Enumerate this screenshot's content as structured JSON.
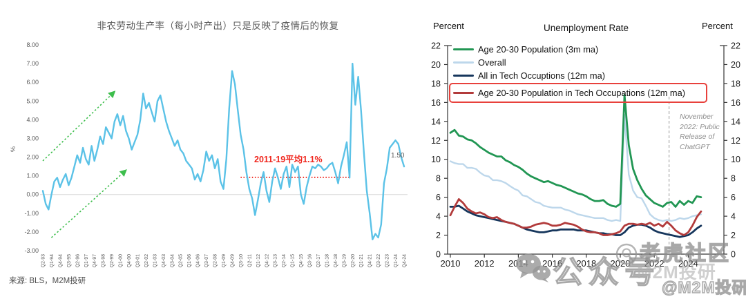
{
  "source_note": "来源:  BLS，M2M投研",
  "watermarks": {
    "wechat_label": "公众号",
    "community_label": "老虎社区",
    "brand_label": "M2M投研",
    "handle_label": "@M2M投研"
  },
  "left_chart": {
    "title": "非农劳动生产率（每小时产出）只是反映了疫情后的恢复",
    "ylabel": "%",
    "avg_annotation": "2011-19平均1.1%",
    "last_value_label": "1.50"
  },
  "right_chart": {
    "title": "Unemployment Rate",
    "axis_label_left": "Percent",
    "axis_label_right": "Percent",
    "event_annotation": "November 2022: Public Release of ChatGPT"
  },
  "colors": {
    "productivity_line": "#5BC2E7",
    "trend_arrow": "#3DBE4C",
    "avg_line_red": "#F0261D",
    "legend_highlight_box": "#E8413C",
    "zero_gridline": "#D8D8D8",
    "event_dashed_line": "#A9A9A9",
    "axis_black": "#333333",
    "left_text_gray": "#595959"
  },
  "chart_data": [
    {
      "type": "line",
      "title": "非农劳动生产率（每小时产出）只是反映了疫情后的恢复",
      "ylabel": "%",
      "ylim": [
        -3,
        8
      ],
      "yticks": [
        8,
        7,
        6,
        5,
        4,
        3,
        2,
        1,
        0,
        -1,
        -2,
        -3
      ],
      "ytick_format": "two-decimals",
      "grid": "zero-line-only",
      "x_unit": "quarter",
      "x_first": "1993Q2",
      "x_last": "2024Q4",
      "x_tick_every": 3,
      "x_tick_labels": [
        "Q2-93",
        "Q1-94",
        "Q4-94",
        "Q3-95",
        "Q2-96",
        "Q1-97",
        "Q4-97",
        "Q3-98",
        "Q2-99",
        "Q1-00",
        "Q4-00",
        "Q3-01",
        "Q2-02",
        "Q1-03",
        "Q4-03",
        "Q3-04",
        "Q2-05",
        "Q1-06",
        "Q4-06",
        "Q3-07",
        "Q2-08",
        "Q1-09",
        "Q4-09",
        "Q3-10",
        "Q2-11",
        "Q1-12",
        "Q4-12",
        "Q3-13",
        "Q2-14",
        "Q1-15",
        "Q4-15",
        "Q3-16",
        "Q2-17",
        "Q1-18",
        "Q4-18",
        "Q3-19",
        "Q2-20",
        "Q1-21",
        "Q4-21",
        "Q3-22",
        "Q2-23",
        "Q1-24",
        "Q4-24"
      ],
      "series": [
        {
          "name": "非农劳动生产率（每小时产出）",
          "color": "#5BC2E7",
          "values": [
            0.2,
            -0.5,
            -0.8,
            0.0,
            0.7,
            0.9,
            0.4,
            0.8,
            1.1,
            0.5,
            0.9,
            1.5,
            2.1,
            1.7,
            2.5,
            1.9,
            1.6,
            2.6,
            1.8,
            2.4,
            3.1,
            2.7,
            3.6,
            3.3,
            3.0,
            3.9,
            4.3,
            3.7,
            4.2,
            3.4,
            3.0,
            2.4,
            2.8,
            3.2,
            4.0,
            5.4,
            4.6,
            4.9,
            4.4,
            3.9,
            5.0,
            5.3,
            4.6,
            3.9,
            3.4,
            3.0,
            2.6,
            2.9,
            2.4,
            2.2,
            1.8,
            1.6,
            1.4,
            0.8,
            1.1,
            0.7,
            1.3,
            2.3,
            1.8,
            2.1,
            1.4,
            1.9,
            0.7,
            0.3,
            1.9,
            4.6,
            6.6,
            5.9,
            4.5,
            3.2,
            2.4,
            1.2,
            0.3,
            -0.2,
            -1.1,
            -0.3,
            0.6,
            1.2,
            0.2,
            -0.4,
            0.7,
            1.4,
            0.9,
            0.3,
            1.1,
            1.5,
            0.4,
            1.6,
            1.2,
            1.5,
            0.0,
            -0.5,
            0.4,
            1.0,
            1.5,
            1.4,
            1.6,
            1.5,
            1.3,
            1.4,
            1.6,
            1.7,
            1.2,
            0.6,
            1.5,
            2.1,
            2.8,
            0.9,
            7.0,
            4.8,
            6.3,
            4.5,
            2.2,
            0.2,
            -1.0,
            -2.4,
            -2.1,
            -2.3,
            -1.6,
            0.6,
            1.4,
            2.5,
            2.7,
            2.9,
            2.7,
            2.0,
            1.5
          ]
        }
      ],
      "annotations": {
        "avg_line": {
          "label": "2011-19平均1.1%",
          "value": 1.1,
          "x_from_index": 69,
          "x_to_index": 107,
          "color": "#F0261D",
          "style": "dotted"
        },
        "trend_arrows": [
          {
            "from_index": 0,
            "from_value": 1.8,
            "to_index": 25,
            "to_value": 5.5
          },
          {
            "from_index": 3,
            "from_value": -2.3,
            "to_index": 29,
            "to_value": 1.3
          }
        ],
        "last_value_label": "1.50"
      }
    },
    {
      "type": "line",
      "title": "Unemployment Rate",
      "ylabel_left": "Percent",
      "ylabel_right": "Percent",
      "ylim": [
        0,
        22
      ],
      "yticks": [
        0,
        2,
        4,
        6,
        8,
        10,
        12,
        14,
        16,
        18,
        20,
        22
      ],
      "x_ticks": [
        2010,
        2012,
        2014,
        2016,
        2018,
        2020,
        2022,
        2024
      ],
      "x_start": 2010,
      "x_step_years": 0.25,
      "legend_position": "top-left",
      "series": [
        {
          "name": "Age 20-30 Population (3m ma)",
          "color": "#219653",
          "values": [
            12.8,
            13.1,
            12.5,
            12.4,
            12.1,
            12.0,
            11.7,
            11.3,
            11.0,
            10.7,
            10.5,
            10.3,
            10.3,
            9.9,
            9.7,
            9.4,
            9.2,
            8.9,
            8.5,
            8.2,
            8.0,
            7.8,
            7.6,
            7.7,
            7.5,
            7.3,
            7.2,
            7.0,
            6.8,
            6.6,
            6.4,
            6.3,
            6.1,
            5.8,
            5.6,
            5.6,
            5.7,
            5.3,
            5.1,
            5.0,
            5.3,
            16.8,
            11.5,
            9.0,
            7.8,
            6.9,
            6.2,
            5.8,
            5.4,
            5.2,
            5.0,
            5.4,
            5.5,
            5.0,
            5.6,
            5.2,
            5.6,
            5.4,
            6.1,
            6.0
          ]
        },
        {
          "name": "Overall",
          "color": "#BDD7EB",
          "values": [
            9.8,
            9.6,
            9.5,
            9.5,
            9.1,
            9.1,
            9.0,
            8.6,
            8.3,
            8.2,
            7.8,
            7.8,
            7.7,
            7.5,
            7.2,
            6.9,
            6.7,
            6.2,
            6.1,
            5.8,
            5.5,
            5.4,
            5.1,
            5.0,
            4.9,
            4.9,
            4.9,
            4.7,
            4.6,
            4.4,
            4.2,
            4.1,
            4.0,
            3.9,
            3.8,
            3.8,
            3.8,
            3.6,
            3.5,
            3.6,
            3.5,
            14.7,
            8.4,
            6.7,
            6.0,
            5.9,
            5.1,
            4.2,
            3.8,
            3.6,
            3.5,
            3.6,
            3.5,
            3.6,
            3.8,
            3.7,
            3.8,
            4.0,
            4.1,
            4.2
          ]
        },
        {
          "name": "All in Tech Occuptions (12m ma)",
          "color": "#16365C",
          "values": [
            5.0,
            5.0,
            5.1,
            4.8,
            4.5,
            4.3,
            4.1,
            4.0,
            3.9,
            3.8,
            3.7,
            3.6,
            3.5,
            3.4,
            3.3,
            3.2,
            3.0,
            2.8,
            2.6,
            2.5,
            2.4,
            2.3,
            2.3,
            2.4,
            2.5,
            2.5,
            2.6,
            2.6,
            2.6,
            2.6,
            2.5,
            2.5,
            2.5,
            2.4,
            2.3,
            2.2,
            2.2,
            2.1,
            2.1,
            2.0,
            2.0,
            2.3,
            2.8,
            3.0,
            3.1,
            3.1,
            3.0,
            2.8,
            2.5,
            2.3,
            2.2,
            2.1,
            2.0,
            1.9,
            1.8,
            1.9,
            2.0,
            2.3,
            2.7,
            3.0
          ]
        },
        {
          "name": "Age 20-30 Population in Tech Occupations (12m ma)",
          "color": "#B23B3B",
          "highlighted": true,
          "values": [
            4.1,
            5.0,
            5.8,
            5.4,
            4.8,
            4.5,
            4.3,
            4.4,
            4.2,
            3.9,
            3.8,
            3.9,
            3.6,
            3.4,
            3.3,
            3.2,
            3.0,
            2.8,
            2.8,
            2.9,
            3.1,
            3.2,
            3.3,
            3.2,
            3.0,
            3.0,
            3.1,
            3.3,
            3.2,
            3.1,
            2.9,
            2.6,
            2.4,
            2.3,
            2.3,
            2.2,
            2.0,
            2.0,
            2.1,
            2.2,
            2.4,
            3.0,
            3.2,
            3.2,
            3.1,
            3.2,
            3.1,
            3.3,
            3.0,
            3.2,
            2.9,
            3.4,
            3.0,
            2.5,
            2.2,
            2.0,
            2.3,
            3.0,
            3.9,
            4.5
          ]
        }
      ],
      "event_line": {
        "x": 2022.87,
        "label": "November 2022: Public Release of ChatGPT",
        "style": "dashed"
      }
    }
  ]
}
